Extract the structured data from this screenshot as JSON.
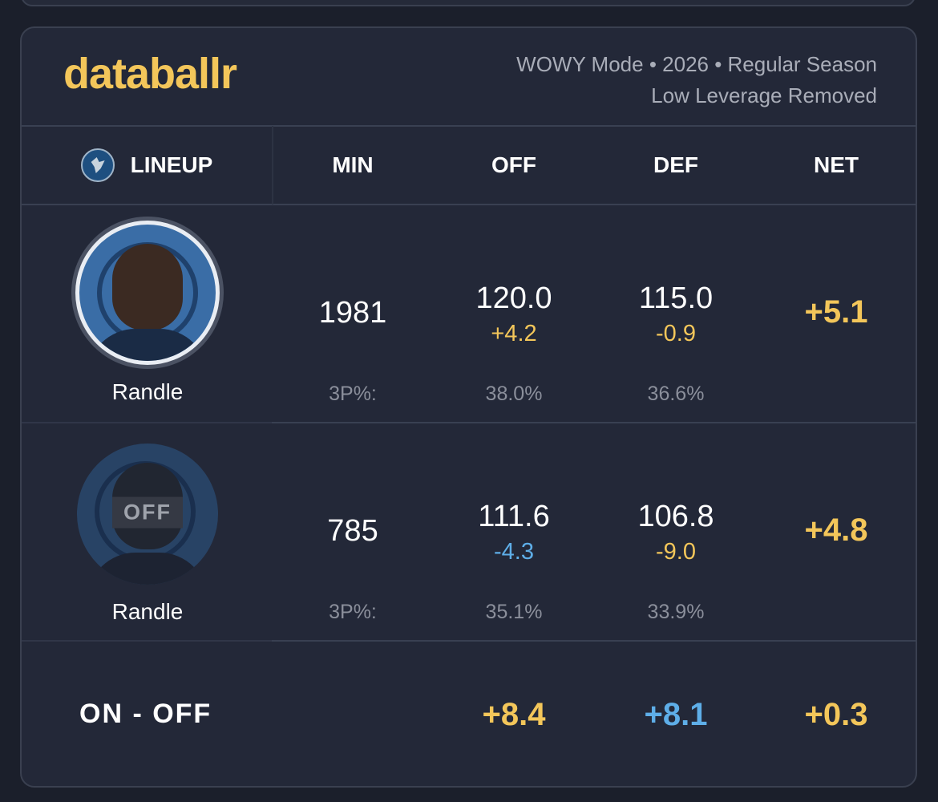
{
  "brand": "databallr",
  "meta": {
    "line1": "WOWY Mode • 2026 • Regular Season",
    "line2": "Low Leverage Removed"
  },
  "headers": {
    "lineup": "LINEUP",
    "min": "MIN",
    "off": "OFF",
    "def": "DEF",
    "net": "NET"
  },
  "rows": [
    {
      "player": "Randle",
      "status": "on",
      "min": "1981",
      "off": "120.0",
      "off_diff": "+4.2",
      "def": "115.0",
      "def_diff": "-0.9",
      "net": "+5.1",
      "pct_label": "3P%:",
      "off_3p": "38.0%",
      "def_3p": "36.6%"
    },
    {
      "player": "Randle",
      "status": "off",
      "off_badge": "OFF",
      "min": "785",
      "off": "111.6",
      "off_diff": "-4.3",
      "def": "106.8",
      "def_diff": "-9.0",
      "net": "+4.8",
      "pct_label": "3P%:",
      "off_3p": "35.1%",
      "def_3p": "33.9%"
    }
  ],
  "on_off": {
    "label": "ON - OFF",
    "off": "+8.4",
    "def": "+8.1",
    "net": "+0.3"
  },
  "colors": {
    "accent_gold": "#f3c65a",
    "accent_blue": "#5eaee8",
    "background": "#1b1f2b",
    "card": "#232838"
  },
  "icons": {
    "team_logo": "timberwolves-logo-icon"
  }
}
